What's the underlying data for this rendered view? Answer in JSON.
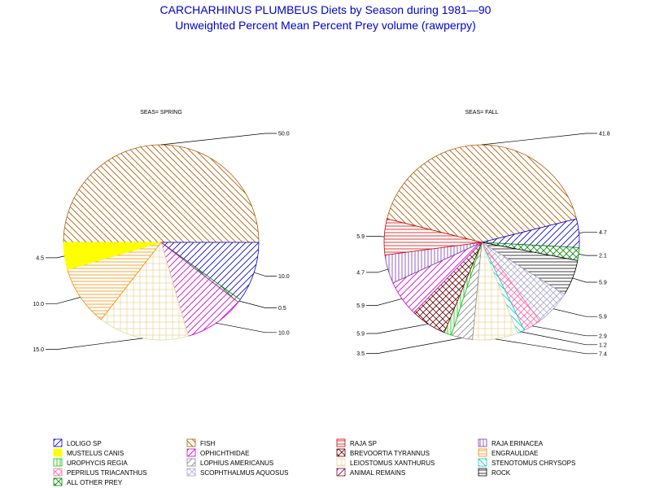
{
  "title": "CARCHARHINUS PLUMBEUS Diets by Season during 1981—90",
  "subtitle": "Unweighted Percent Mean Percent Prey  volume (rawperpy)",
  "chart_data": [
    {
      "type": "pie",
      "panel_label": "SEAS= SPRING",
      "slices": [
        {
          "category": "FISH",
          "value": 50.0,
          "label": "50.0"
        },
        {
          "category": "LOLIGO SP",
          "value": 10.0,
          "label": "10.0"
        },
        {
          "category": "ALL OTHER PREY",
          "value": 0.5,
          "label": "0.5"
        },
        {
          "category": "OPHICHTHIDAE",
          "value": 10.0,
          "label": "10.0"
        },
        {
          "category": "LEIOSTOMUS XANTHURUS",
          "value": 15.0,
          "label": "15.0"
        },
        {
          "category": "ENGRAULIDAE",
          "value": 10.0,
          "label": "10.0"
        },
        {
          "category": "MUSTELUS CANIS",
          "value": 4.5,
          "label": "4.5"
        }
      ]
    },
    {
      "type": "pie",
      "panel_label": "SEAS= FALL",
      "slices": [
        {
          "category": "FISH",
          "value": 41.8,
          "label": "41.8"
        },
        {
          "category": "LOLIGO SP",
          "value": 4.7,
          "label": "4.7"
        },
        {
          "category": "ALL OTHER PREY",
          "value": 2.1,
          "label": "2.1"
        },
        {
          "category": "ROCK",
          "value": 5.9,
          "label": "5.9"
        },
        {
          "category": "SCOPHTHALMUS AQUOSUS",
          "value": 5.9,
          "label": "5.9"
        },
        {
          "category": "PEPRILUS TRIACANTHUS",
          "value": 2.9,
          "label": "2.9"
        },
        {
          "category": "STENOTOMUS CHRYSOPS",
          "value": 1.2,
          "label": "1.2"
        },
        {
          "category": "LEIOSTOMUS XANTHURUS",
          "value": 7.4,
          "label": "7.4"
        },
        {
          "category": "LOPHIUS AMERICANUS",
          "value": 3.5,
          "label": "3.5"
        },
        {
          "category": "UROPHYCIS REGIA",
          "value": 1.2,
          "label": ""
        },
        {
          "category": "BREVOORTIA TYRANNUS",
          "value": 5.9,
          "label": "5.9"
        },
        {
          "category": "OPHICHTHIDAE",
          "value": 5.9,
          "label": "5.9"
        },
        {
          "category": "RAJA ERINACEA",
          "value": 4.7,
          "label": "4.7"
        },
        {
          "category": "RAJA SP",
          "value": 5.9,
          "label": "5.9"
        }
      ]
    }
  ],
  "legend": [
    {
      "name": "LOLIGO SP",
      "color": "#0000cc",
      "pattern": "diag-right"
    },
    {
      "name": "FISH",
      "color": "#b05a00",
      "pattern": "diag-left"
    },
    {
      "name": "RAJA SP",
      "color": "#cc0000",
      "pattern": "horizontal"
    },
    {
      "name": "RAJA ERINACEA",
      "color": "#7a3cae",
      "pattern": "vertical"
    },
    {
      "name": "MUSTELUS CANIS",
      "color": "#ffff00",
      "pattern": "solid"
    },
    {
      "name": "OPHICHTHIDAE",
      "color": "#cc00cc",
      "pattern": "diag-right"
    },
    {
      "name": "BREVOORTIA TYRANNUS",
      "color": "#660000",
      "pattern": "crosshatch"
    },
    {
      "name": "ENGRAULIDAE",
      "color": "#ee8a00",
      "pattern": "horizontal"
    },
    {
      "name": "UROPHYCIS REGIA",
      "color": "#00cc00",
      "pattern": "vertical"
    },
    {
      "name": "LOPHIUS AMERICANUS",
      "color": "#888888",
      "pattern": "diag-right"
    },
    {
      "name": "LEIOSTOMUS XANTHURUS",
      "color": "#e8d8a0",
      "pattern": "grid"
    },
    {
      "name": "STENOTOMUS CHRYSOPS",
      "color": "#00cccc",
      "pattern": "diag-left"
    },
    {
      "name": "PEPRILUS TRIACANTHUS",
      "color": "#ff66aa",
      "pattern": "crosshatch"
    },
    {
      "name": "SCOPHTHALMUS AQUOSUS",
      "color": "#aaaacc",
      "pattern": "crosshatch"
    },
    {
      "name": "ANIMAL REMAINS",
      "color": "#880033",
      "pattern": "diag-right"
    },
    {
      "name": "ROCK",
      "color": "#000000",
      "pattern": "horizontal"
    },
    {
      "name": "ALL OTHER PREY",
      "color": "#008800",
      "pattern": "crosshatch"
    }
  ]
}
